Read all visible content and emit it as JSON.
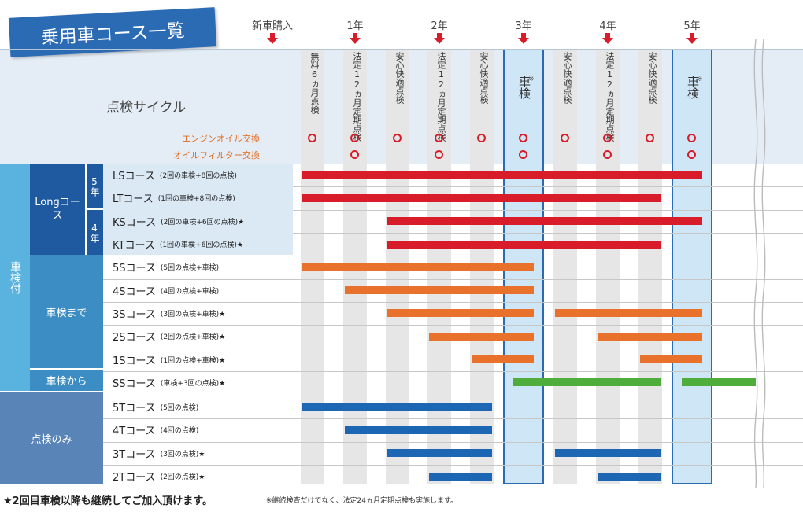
{
  "title": "乗用車コース一覧",
  "schedule_labels": [
    "新車購入",
    "1年",
    "2年",
    "3年",
    "4年",
    "5年"
  ],
  "cycle_label": "点検サイクル",
  "columns": [
    "無料6ヵ月点検",
    "法定12ヵ月定期点検",
    "安心快適点検",
    "法定12ヵ月定期点検",
    "安心快適点検",
    "※車検",
    "安心快適点検",
    "法定12ヵ月定期点検",
    "安心快適点検",
    "※車検"
  ],
  "services": [
    {
      "label": "エンジンオイル交換",
      "marks": [
        true,
        true,
        true,
        true,
        true,
        true,
        true,
        true,
        true,
        true
      ]
    },
    {
      "label": "オイルフィルター交換",
      "marks": [
        false,
        true,
        false,
        true,
        false,
        true,
        false,
        true,
        false,
        true
      ]
    }
  ],
  "groups": {
    "shaken_tsuki": "車検付",
    "long": "Longコース",
    "long_5": "5年",
    "long_4": "4年",
    "made": "車検まで",
    "kara": "車検から",
    "tenken": "点検のみ"
  },
  "courses": [
    {
      "name": "LSコース",
      "detail": "(2回の車検+8回の点検)",
      "color": "red",
      "segments": [
        [
          0,
          9
        ]
      ]
    },
    {
      "name": "LTコース",
      "detail": "(1回の車検+8回の点検)",
      "color": "red",
      "segments": [
        [
          0,
          8
        ]
      ]
    },
    {
      "name": "KSコース",
      "detail": "(2回の車検+6回の点検)★",
      "color": "red",
      "segments": [
        [
          2,
          9
        ]
      ]
    },
    {
      "name": "KTコース",
      "detail": "(1回の車検+6回の点検)★",
      "color": "red",
      "segments": [
        [
          2,
          8
        ]
      ]
    },
    {
      "name": "5Sコース",
      "detail": "(5回の点検+車検)",
      "color": "orange",
      "segments": [
        [
          0,
          5
        ]
      ]
    },
    {
      "name": "4Sコース",
      "detail": "(4回の点検+車検)",
      "color": "orange",
      "segments": [
        [
          1,
          5
        ]
      ]
    },
    {
      "name": "3Sコース",
      "detail": "(3回の点検+車検)★",
      "color": "orange",
      "segments": [
        [
          2,
          5
        ],
        [
          6,
          9
        ]
      ]
    },
    {
      "name": "2Sコース",
      "detail": "(2回の点検+車検)★",
      "color": "orange",
      "segments": [
        [
          3,
          5
        ],
        [
          7,
          9
        ]
      ]
    },
    {
      "name": "1Sコース",
      "detail": "(1回の点検+車検)★",
      "color": "orange",
      "segments": [
        [
          4,
          5
        ],
        [
          8,
          9
        ]
      ]
    },
    {
      "name": "SSコース",
      "detail": "(車検+3回の点検)★",
      "color": "green",
      "segments": [
        [
          5,
          8
        ],
        [
          9,
          10
        ]
      ]
    },
    {
      "name": "5Tコース",
      "detail": "(5回の点検)",
      "color": "blue",
      "segments": [
        [
          0,
          4
        ]
      ]
    },
    {
      "name": "4Tコース",
      "detail": "(4回の点検)",
      "color": "blue",
      "segments": [
        [
          1,
          4
        ]
      ]
    },
    {
      "name": "3Tコース",
      "detail": "(3回の点検)★",
      "color": "blue",
      "segments": [
        [
          2,
          4
        ],
        [
          6,
          8
        ]
      ]
    },
    {
      "name": "2Tコース",
      "detail": "(2回の点検)★",
      "color": "blue",
      "segments": [
        [
          3,
          4
        ],
        [
          7,
          8
        ]
      ]
    }
  ],
  "colors": {
    "red": "#d81c2a",
    "orange": "#e8722c",
    "green": "#4fae3b",
    "blue": "#1c66b4",
    "header_blue": "#2a6bb4",
    "light_blue": "#5ab3de",
    "mid_blue": "#3b8dc3",
    "dark_blue": "#1f5aa0",
    "steel_blue": "#5984b8",
    "pale_blue": "#dbe9f5",
    "stripe": "#e6e6e6",
    "shaken_fill": "#cfe6f6",
    "shaken_border": "#2a6bb4"
  },
  "footer": {
    "note_main": "★2回目車検以降も継続してご加入頂けます。",
    "note_sub": "※継続検査だけでなく、法定24ヵ月定期点検も実施します。"
  }
}
